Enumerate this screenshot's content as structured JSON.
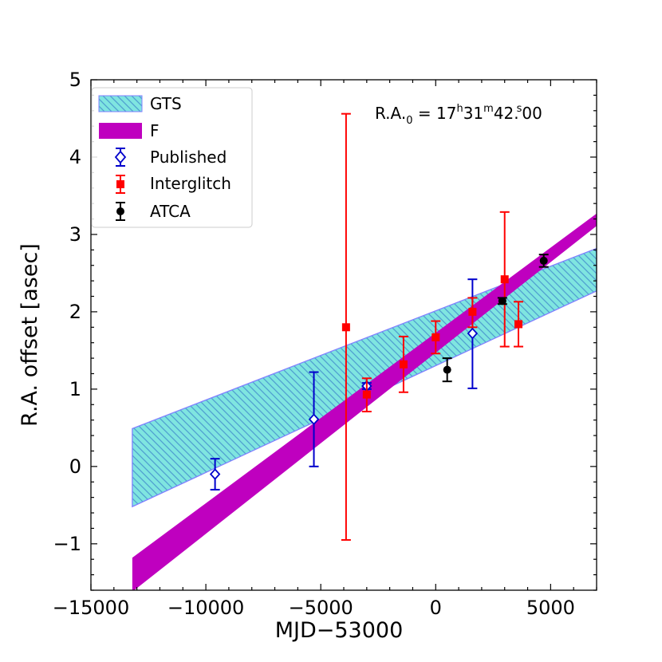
{
  "chart_data": {
    "type": "scatter",
    "xlabel": "MJD−53000",
    "ylabel": "R.A. offset [asec]",
    "xlim": [
      -15000,
      7000
    ],
    "ylim": [
      -1.6,
      5
    ],
    "xticks": [
      -15000,
      -10000,
      -5000,
      0,
      5000
    ],
    "xtick_labels": [
      "−15000",
      "−10000",
      "−5000",
      "0",
      "5000"
    ],
    "yticks": [
      -1,
      0,
      1,
      2,
      3,
      4,
      5
    ],
    "ytick_labels": [
      "−1",
      "0",
      "1",
      "2",
      "3",
      "4",
      "5"
    ],
    "annotation": {
      "prefix": "R.A.",
      "sub": "0",
      "eq": " = 17",
      "h_sup": "h",
      "mid1": "31",
      "m_sup": "m",
      "mid2": "42.",
      "s_sup": "s",
      "tail": "00"
    },
    "legend": {
      "location": "upper-left",
      "entries": [
        {
          "label": "GTS",
          "kind": "hatched-band"
        },
        {
          "label": "F",
          "kind": "band"
        },
        {
          "label": "Published",
          "kind": "open-diamond"
        },
        {
          "label": "Interglitch",
          "kind": "square"
        },
        {
          "label": "ATCA",
          "kind": "circle"
        }
      ]
    },
    "bands": [
      {
        "name": "GTS",
        "fill": "#7fe5e0",
        "edge": "#8080ff",
        "hatch": "#4f9fd0",
        "x": [
          -13200,
          7000
        ],
        "lower": [
          -0.52,
          2.27
        ],
        "upper": [
          0.49,
          2.82
        ]
      },
      {
        "name": "F",
        "fill": "#bf00bf",
        "x": [
          -13200,
          7000
        ],
        "lower": [
          -1.62,
          3.11
        ],
        "upper": [
          -1.18,
          3.27
        ]
      }
    ],
    "series": [
      {
        "name": "Published",
        "color": "#0000cc",
        "marker": "open-diamond",
        "x": [
          -9600,
          -5300,
          -3000,
          1600
        ],
        "y": [
          -0.1,
          0.61,
          1.04,
          1.72
        ],
        "yerr_low": [
          -0.3,
          0.0,
          1.0,
          1.01
        ],
        "yerr_high": [
          0.1,
          1.22,
          1.08,
          2.42
        ]
      },
      {
        "name": "Interglitch",
        "color": "#ff0000",
        "marker": "square",
        "x": [
          -3900,
          -3000,
          -1400,
          0,
          1600,
          3000,
          3600
        ],
        "y": [
          1.8,
          0.93,
          1.32,
          1.67,
          2.0,
          2.42,
          1.84
        ],
        "yerr_low": [
          -0.95,
          0.71,
          0.96,
          1.46,
          1.8,
          1.55,
          1.55
        ],
        "yerr_high": [
          4.56,
          1.14,
          1.68,
          1.88,
          2.18,
          3.29,
          2.13
        ]
      },
      {
        "name": "ATCA",
        "color": "#000000",
        "marker": "circle",
        "x": [
          500,
          2900,
          4700
        ],
        "y": [
          1.25,
          2.14,
          2.66
        ],
        "yerr_low": [
          1.1,
          2.1,
          2.58
        ],
        "yerr_high": [
          1.4,
          2.18,
          2.74
        ]
      }
    ]
  }
}
